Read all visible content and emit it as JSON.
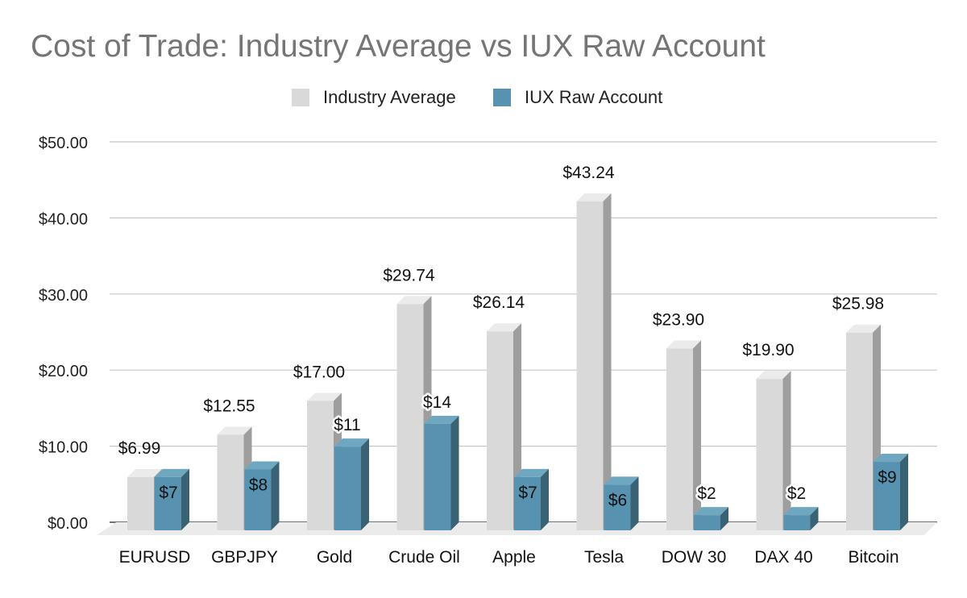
{
  "chart_data": {
    "type": "bar",
    "title": "Cost of Trade: Industry Average vs IUX Raw Account",
    "categories": [
      "EURUSD",
      "GBPJPY",
      "Gold",
      "Crude Oil",
      "Apple",
      "Tesla",
      "DOW 30",
      "DAX 40",
      "Bitcoin"
    ],
    "series": [
      {
        "name": "Industry Average",
        "values": [
          6.99,
          12.55,
          17.0,
          29.74,
          26.14,
          43.24,
          23.9,
          19.9,
          25.98
        ],
        "labels": [
          "$6.99",
          "$12.55",
          "$17.00",
          "$29.74",
          "$26.14",
          "$43.24",
          "$23.90",
          "$19.90",
          "$25.98"
        ],
        "color": "#d9d9d9",
        "side_color": "#9e9e9e",
        "top_color": "#ebebeb"
      },
      {
        "name": "IUX Raw Account",
        "values": [
          7,
          8,
          11,
          14,
          7,
          6,
          2,
          2,
          9
        ],
        "labels": [
          "$7",
          "$8",
          "$11",
          "$14",
          "$7",
          "$6",
          "$2",
          "$2",
          "$9"
        ],
        "color": "#5793b0",
        "side_color": "#3a6275",
        "top_color": "#6fa7c1"
      }
    ],
    "yticks": [
      "$0.00",
      "$10.00",
      "$20.00",
      "$30.00",
      "$40.00",
      "$50.00"
    ],
    "ylim": [
      0,
      50
    ],
    "xlabel": "",
    "ylabel": "",
    "grid": true,
    "legend_position": "top-center",
    "style": "3d-column"
  }
}
